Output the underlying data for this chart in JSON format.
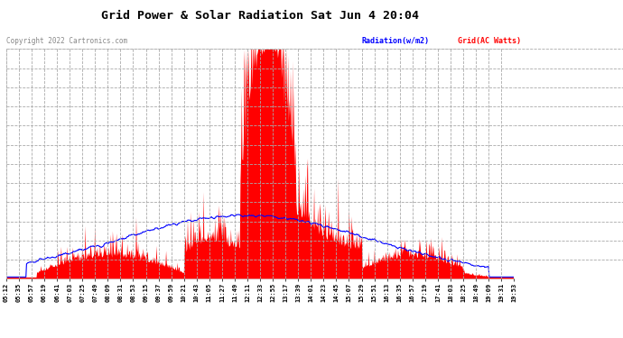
{
  "title": "Grid Power & Solar Radiation Sat Jun 4 20:04",
  "copyright": "Copyright 2022 Cartronics.com",
  "legend_radiation": "Radiation(w/m2)",
  "legend_grid": "Grid(AC Watts)",
  "yticks": [
    -23.5,
    218.3,
    460.1,
    701.8,
    943.6,
    1185.4,
    1427.2,
    1668.9,
    1910.7,
    2152.5,
    2394.3,
    2636.0,
    2877.8
  ],
  "ymin": -23.5,
  "ymax": 2877.8,
  "bg_color": "#ffffff",
  "plot_bg_color": "#ffffff",
  "grid_color": "#aaaaaa",
  "radiation_color": "#0000ff",
  "grid_ac_color": "#ff0000",
  "title_color": "#000000",
  "tick_label_color": "#000000",
  "copyright_color": "#888888",
  "xtick_labels": [
    "05:12",
    "05:35",
    "05:57",
    "06:19",
    "06:41",
    "07:03",
    "07:25",
    "07:49",
    "08:09",
    "08:31",
    "08:53",
    "09:15",
    "09:37",
    "09:59",
    "10:21",
    "10:43",
    "11:05",
    "11:27",
    "11:49",
    "12:11",
    "12:33",
    "12:55",
    "13:17",
    "13:39",
    "14:01",
    "14:23",
    "14:45",
    "15:07",
    "15:29",
    "15:51",
    "16:13",
    "16:35",
    "16:57",
    "17:19",
    "17:41",
    "18:03",
    "18:25",
    "18:49",
    "19:09",
    "19:31",
    "19:53"
  ]
}
